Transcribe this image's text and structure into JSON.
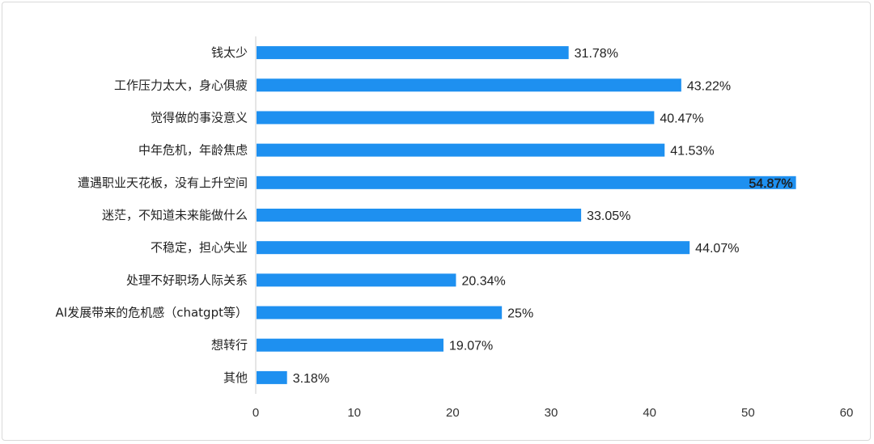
{
  "chart_data": {
    "type": "bar",
    "orientation": "horizontal",
    "categories": [
      "钱太少",
      "工作压力太大，身心俱疲",
      "觉得做的事没意义",
      "中年危机，年龄焦虑",
      "遭遇职业天花板，没有上升空间",
      "迷茫，不知道未来能做什么",
      "不稳定，担心失业",
      "处理不好职场人际关系",
      "AI发展带来的危机感（chatgpt等）",
      "想转行",
      "其他"
    ],
    "values": [
      31.78,
      43.22,
      40.47,
      41.53,
      54.87,
      33.05,
      44.07,
      20.34,
      25,
      19.07,
      3.18
    ],
    "value_labels": [
      "31.78%",
      "43.22%",
      "40.47%",
      "41.53%",
      "54.87%",
      "33.05%",
      "44.07%",
      "20.34%",
      "25%",
      "19.07%",
      "3.18%"
    ],
    "xlim": [
      0,
      60
    ],
    "x_ticks": [
      0,
      10,
      20,
      30,
      40,
      50,
      60
    ],
    "title": "",
    "xlabel": "",
    "ylabel": "",
    "grid": false,
    "bar_color": "#1e90f0",
    "axis_color": "#cccccc"
  }
}
